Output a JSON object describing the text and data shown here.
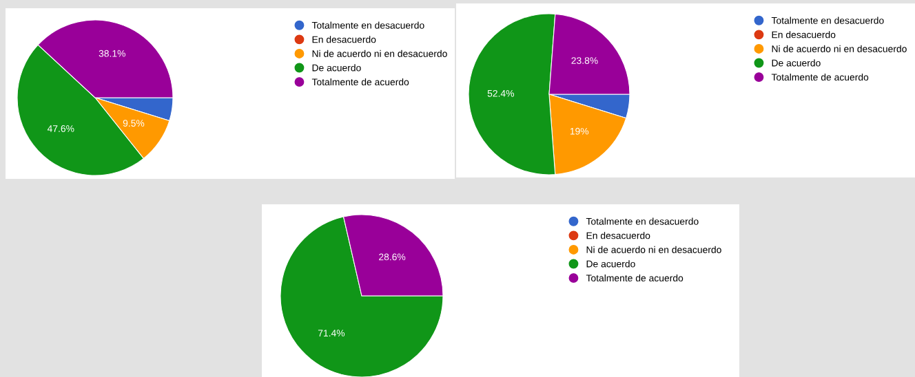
{
  "chart_data": [
    {
      "type": "pie",
      "categories": [
        "Totalmente en desacuerdo",
        "En desacuerdo",
        "Ni de acuerdo ni en desacuerdo",
        "De acuerdo",
        "Totalmente de acuerdo"
      ],
      "values": [
        4.8,
        0,
        9.5,
        47.6,
        38.1
      ],
      "value_labels": [
        null,
        null,
        "9.5%",
        "47.6%",
        "38.1%"
      ],
      "colors": [
        "#3366cc",
        "#dc3912",
        "#ff9900",
        "#109618",
        "#990099"
      ],
      "legend": "top right"
    },
    {
      "type": "pie",
      "categories": [
        "Totalmente en desacuerdo",
        "En desacuerdo",
        "Ni de acuerdo ni en desacuerdo",
        "De acuerdo",
        "Totalmente de acuerdo"
      ],
      "values": [
        4.8,
        0,
        19,
        52.4,
        23.8
      ],
      "value_labels": [
        null,
        null,
        "19%",
        "52.4%",
        "23.8%"
      ],
      "colors": [
        "#3366cc",
        "#dc3912",
        "#ff9900",
        "#109618",
        "#990099"
      ],
      "legend": "top right"
    },
    {
      "type": "pie",
      "categories": [
        "Totalmente en desacuerdo",
        "En desacuerdo",
        "Ni de acuerdo ni en desacuerdo",
        "De acuerdo",
        "Totalmente de acuerdo"
      ],
      "values": [
        0,
        0,
        0,
        71.4,
        28.6
      ],
      "value_labels": [
        null,
        null,
        null,
        "71.4%",
        "28.6%"
      ],
      "colors": [
        "#3366cc",
        "#dc3912",
        "#ff9900",
        "#109618",
        "#990099"
      ],
      "legend": "top right"
    }
  ]
}
